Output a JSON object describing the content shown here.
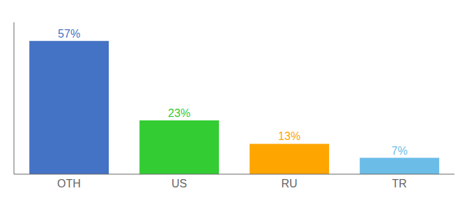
{
  "chart_data": {
    "type": "bar",
    "categories": [
      "OTH",
      "US",
      "RU",
      "TR"
    ],
    "values": [
      57,
      23,
      13,
      7
    ],
    "value_labels": [
      "57%",
      "23%",
      "13%",
      "7%"
    ],
    "colors": [
      "#4472C4",
      "#33CC33",
      "#FFA500",
      "#6BBDE8"
    ],
    "ylim": [
      0,
      65
    ],
    "data_labels": true,
    "tick_labels": "x",
    "grid": false
  }
}
